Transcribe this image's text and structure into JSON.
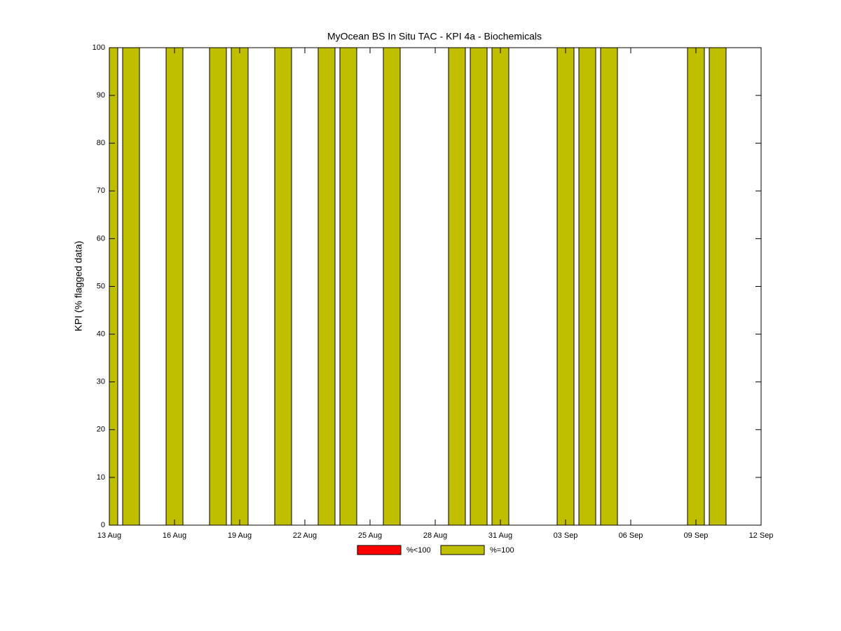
{
  "chart_data": {
    "type": "bar",
    "stacked": true,
    "title": "MyOcean  BS In Situ TAC - KPI 4a - Biochemicals",
    "y_label": "KPI (% flagged data)",
    "categories": [
      "13 Aug",
      null,
      null,
      "16 Aug",
      null,
      null,
      "19 Aug",
      null,
      null,
      "22 Aug",
      null,
      null,
      "25 Aug",
      null,
      null,
      "28 Aug",
      null,
      null,
      "31 Aug",
      null,
      null,
      "03 Sep",
      null,
      null,
      "06 Sep",
      null,
      null,
      "09 Sep",
      null,
      null,
      "12 Sep"
    ],
    "series": [
      {
        "name": "%<100",
        "color": "#ff0000",
        "values": [
          null,
          null,
          null,
          null,
          null,
          null,
          null,
          null,
          null,
          null,
          null,
          null,
          null,
          null,
          null,
          null,
          null,
          null,
          null,
          null,
          null,
          null,
          null,
          null,
          null,
          null,
          null,
          null,
          null,
          null,
          null
        ]
      },
      {
        "name": "%=100",
        "color": "#bfbf00",
        "values": [
          100,
          100,
          null,
          100,
          null,
          100,
          100,
          null,
          100,
          null,
          100,
          100,
          null,
          100,
          null,
          null,
          100,
          100,
          100,
          null,
          null,
          100,
          100,
          100,
          null,
          null,
          null,
          100,
          100,
          null,
          null
        ]
      }
    ],
    "ylim": [
      0,
      100
    ],
    "yticks": [
      0,
      10,
      20,
      30,
      40,
      50,
      60,
      70,
      80,
      90,
      100
    ],
    "grid": false,
    "legend": "bottom"
  }
}
